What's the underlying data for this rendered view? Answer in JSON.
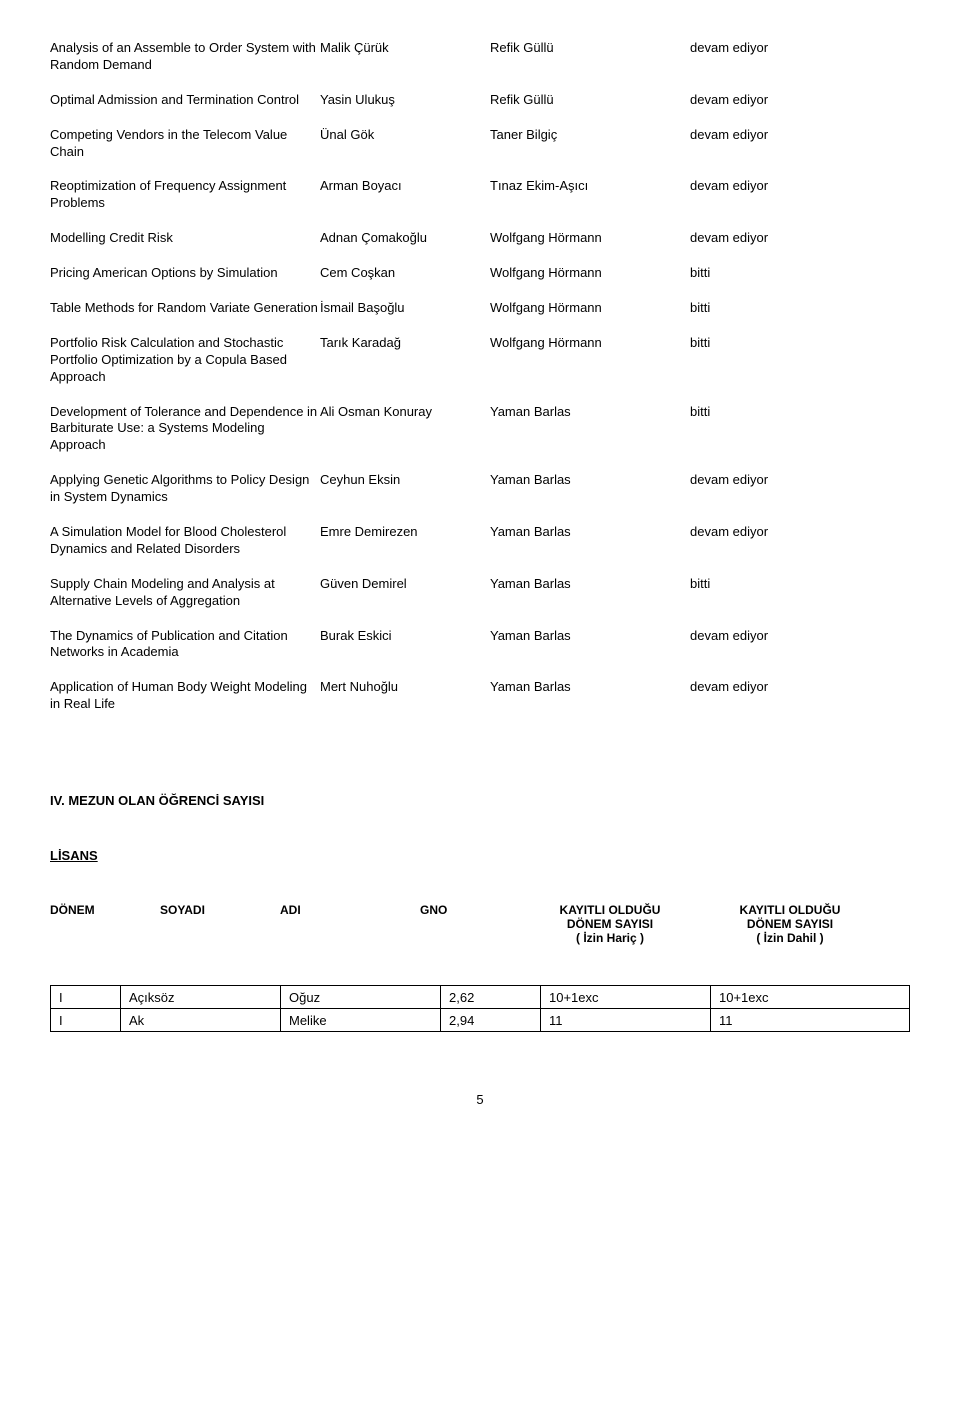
{
  "theses": [
    {
      "title": "Analysis of an Assemble to Order System with Random Demand",
      "student": "Malik Çürük",
      "advisor": "Refik Güllü",
      "status": "devam ediyor"
    },
    {
      "title": "Optimal Admission and Termination Control",
      "student": "Yasin Ulukuş",
      "advisor": "Refik Güllü",
      "status": "devam ediyor"
    },
    {
      "title": "Competing Vendors in the Telecom Value Chain",
      "student": "Ünal Gök",
      "advisor": "Taner Bilgiç",
      "status": "devam ediyor"
    },
    {
      "title": "Reoptimization of Frequency Assignment Problems",
      "student": "Arman Boyacı",
      "advisor": "Tınaz Ekim-Aşıcı",
      "status": "devam ediyor"
    },
    {
      "title": "Modelling Credit Risk",
      "student": "Adnan Çomakoğlu",
      "advisor": "Wolfgang Hörmann",
      "status": "devam ediyor"
    },
    {
      "title": "Pricing American Options by Simulation",
      "student": "Cem Coşkan",
      "advisor": "Wolfgang Hörmann",
      "status": "bitti"
    },
    {
      "title": "Table Methods for Random Variate Generation",
      "student": "İsmail Başoğlu",
      "advisor": "Wolfgang Hörmann",
      "status": "bitti"
    },
    {
      "title": "Portfolio Risk Calculation and Stochastic Portfolio Optimization by a Copula Based Approach",
      "student": "Tarık Karadağ",
      "advisor": "Wolfgang Hörmann",
      "status": "bitti"
    },
    {
      "title": "Development of Tolerance and Dependence in  Barbiturate Use: a Systems Modeling Approach",
      "student": "Ali Osman Konuray",
      "advisor": "Yaman Barlas",
      "status": "bitti"
    },
    {
      "title": "Applying Genetic Algorithms to Policy Design in System Dynamics",
      "student": "Ceyhun Eksin",
      "advisor": "Yaman Barlas",
      "status": "devam ediyor"
    },
    {
      "title": "A Simulation Model for Blood Cholesterol Dynamics and Related Disorders",
      "student": "Emre Demirezen",
      "advisor": "Yaman Barlas",
      "status": "devam ediyor"
    },
    {
      "title": "Supply Chain Modeling and Analysis at Alternative Levels of Aggregation",
      "student": "Güven Demirel",
      "advisor": "Yaman Barlas",
      "status": "bitti"
    },
    {
      "title": "The Dynamics of Publication and Citation Networks in Academia",
      "student": "Burak Eskici",
      "advisor": "Yaman Barlas",
      "status": "devam ediyor"
    },
    {
      "title": "Application of Human Body Weight Modeling in Real Life",
      "student": "Mert Nuhoğlu",
      "advisor": "Yaman Barlas",
      "status": "devam ediyor"
    }
  ],
  "section_iv_title": "IV. MEZUN OLAN ÖĞRENCİ SAYISI",
  "lisans_label": "LİSANS",
  "student_header": {
    "c0": "DÖNEM",
    "c1": "SOYADI",
    "c2": "ADI",
    "c3": "GNO",
    "c4a": "KAYITLI OLDUĞU",
    "c4b": "DÖNEM SAYISI",
    "c4c": "( İzin Hariç )",
    "c5a": "KAYITLI OLDUĞU",
    "c5b": "DÖNEM SAYISI",
    "c5c": "( İzin Dahil )"
  },
  "students": [
    {
      "donem": "I",
      "soyadi": "Açıksöz",
      "adi": "Oğuz",
      "gno": "2,62",
      "haric": "10+1exc",
      "dahil": "10+1exc"
    },
    {
      "donem": "I",
      "soyadi": "Ak",
      "adi": "Melike",
      "gno": "2,94",
      "haric": "11",
      "dahil": "11"
    }
  ],
  "page_number": "5"
}
